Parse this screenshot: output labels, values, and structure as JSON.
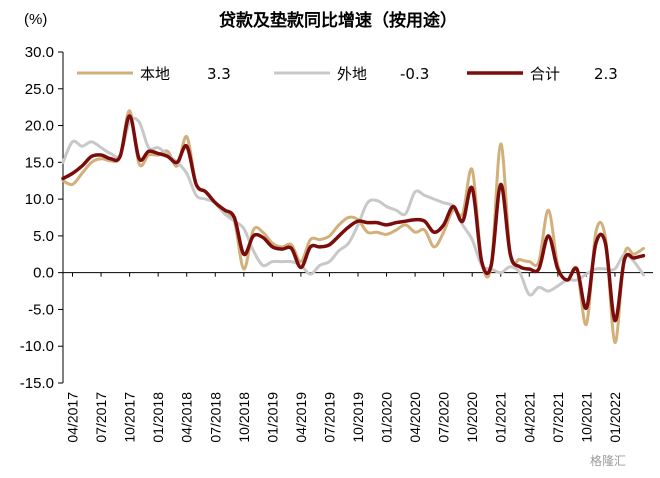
{
  "chart_data": {
    "type": "line",
    "title": "贷款及垫款同比增速（按用途）",
    "unit_label": "(%)",
    "ylim": [
      -15,
      30
    ],
    "y_ticks": [
      "30.0",
      "25.0",
      "20.0",
      "15.0",
      "10.0",
      "5.0",
      "0.0",
      "-5.0",
      "-10.0",
      "-15.0"
    ],
    "x_ticks": [
      "04/2017",
      "07/2017",
      "10/2017",
      "01/2018",
      "04/2018",
      "07/2018",
      "10/2018",
      "01/2019",
      "04/2019",
      "07/2019",
      "10/2019",
      "01/2020",
      "04/2020",
      "07/2020",
      "10/2020",
      "01/2021",
      "04/2021",
      "07/2021",
      "10/2021",
      "01/2022"
    ],
    "x_start": "2017-03",
    "x_end": "2022-05",
    "legend_position": "top",
    "grid": false,
    "series": [
      {
        "name": "本地",
        "legend_value": "3.3",
        "color": "#d2b07c",
        "width": 3,
        "values": [
          [
            "2017-03",
            12.5
          ],
          [
            "2017-04",
            12.0
          ],
          [
            "2017-05",
            13.5
          ],
          [
            "2017-06",
            15.0
          ],
          [
            "2017-07",
            15.5
          ],
          [
            "2017-08",
            15.2
          ],
          [
            "2017-09",
            15.8
          ],
          [
            "2017-10",
            22.0
          ],
          [
            "2017-11",
            14.8
          ],
          [
            "2017-12",
            16.0
          ],
          [
            "2018-01",
            16.0
          ],
          [
            "2018-02",
            16.5
          ],
          [
            "2018-03",
            14.5
          ],
          [
            "2018-04",
            18.5
          ],
          [
            "2018-05",
            12.0
          ],
          [
            "2018-06",
            11.0
          ],
          [
            "2018-07",
            9.5
          ],
          [
            "2018-08",
            8.0
          ],
          [
            "2018-09",
            7.0
          ],
          [
            "2018-10",
            0.5
          ],
          [
            "2018-11",
            5.8
          ],
          [
            "2018-12",
            5.5
          ],
          [
            "2019-01",
            4.0
          ],
          [
            "2019-02",
            3.5
          ],
          [
            "2019-03",
            3.8
          ],
          [
            "2019-04",
            1.5
          ],
          [
            "2019-05",
            4.5
          ],
          [
            "2019-06",
            4.5
          ],
          [
            "2019-07",
            5.0
          ],
          [
            "2019-08",
            6.5
          ],
          [
            "2019-09",
            7.5
          ],
          [
            "2019-10",
            7.2
          ],
          [
            "2019-11",
            5.5
          ],
          [
            "2019-12",
            5.5
          ],
          [
            "2020-01",
            5.2
          ],
          [
            "2020-02",
            5.8
          ],
          [
            "2020-03",
            6.5
          ],
          [
            "2020-04",
            5.5
          ],
          [
            "2020-05",
            5.8
          ],
          [
            "2020-06",
            3.5
          ],
          [
            "2020-07",
            5.5
          ],
          [
            "2020-08",
            8.5
          ],
          [
            "2020-09",
            8.0
          ],
          [
            "2020-10",
            14.0
          ],
          [
            "2020-11",
            1.5
          ],
          [
            "2020-12",
            1.0
          ],
          [
            "2021-01",
            17.5
          ],
          [
            "2021-02",
            2.5
          ],
          [
            "2021-03",
            1.8
          ],
          [
            "2021-04",
            1.5
          ],
          [
            "2021-05",
            1.5
          ],
          [
            "2021-06",
            8.5
          ],
          [
            "2021-07",
            1.0
          ],
          [
            "2021-08",
            -1.0
          ],
          [
            "2021-09",
            0.5
          ],
          [
            "2021-10",
            -7.0
          ],
          [
            "2021-11",
            5.5
          ],
          [
            "2021-12",
            4.8
          ],
          [
            "2022-01",
            -9.5
          ],
          [
            "2022-02",
            2.5
          ],
          [
            "2022-03",
            2.5
          ],
          [
            "2022-04",
            3.3
          ]
        ]
      },
      {
        "name": "外地",
        "legend_value": "-0.3",
        "color": "#c8c8c8",
        "width": 3,
        "values": [
          [
            "2017-03",
            15.0
          ],
          [
            "2017-04",
            17.8
          ],
          [
            "2017-05",
            17.2
          ],
          [
            "2017-06",
            17.8
          ],
          [
            "2017-07",
            17.0
          ],
          [
            "2017-08",
            16.2
          ],
          [
            "2017-09",
            16.0
          ],
          [
            "2017-10",
            20.5
          ],
          [
            "2017-11",
            20.5
          ],
          [
            "2017-12",
            17.0
          ],
          [
            "2018-01",
            17.0
          ],
          [
            "2018-02",
            16.0
          ],
          [
            "2018-03",
            15.0
          ],
          [
            "2018-04",
            13.5
          ],
          [
            "2018-05",
            10.5
          ],
          [
            "2018-06",
            10.0
          ],
          [
            "2018-07",
            9.5
          ],
          [
            "2018-08",
            8.0
          ],
          [
            "2018-09",
            7.0
          ],
          [
            "2018-10",
            6.0
          ],
          [
            "2018-11",
            3.0
          ],
          [
            "2018-12",
            1.0
          ],
          [
            "2019-01",
            1.5
          ],
          [
            "2019-02",
            1.5
          ],
          [
            "2019-03",
            1.5
          ],
          [
            "2019-04",
            1.0
          ],
          [
            "2019-05",
            -0.2
          ],
          [
            "2019-06",
            1.0
          ],
          [
            "2019-07",
            1.5
          ],
          [
            "2019-08",
            3.0
          ],
          [
            "2019-09",
            4.0
          ],
          [
            "2019-10",
            6.5
          ],
          [
            "2019-11",
            9.5
          ],
          [
            "2019-12",
            9.8
          ],
          [
            "2020-01",
            9.0
          ],
          [
            "2020-02",
            8.5
          ],
          [
            "2020-03",
            8.0
          ],
          [
            "2020-04",
            11.0
          ],
          [
            "2020-05",
            10.5
          ],
          [
            "2020-06",
            10.0
          ],
          [
            "2020-07",
            9.5
          ],
          [
            "2020-08",
            9.0
          ],
          [
            "2020-09",
            6.5
          ],
          [
            "2020-10",
            4.5
          ],
          [
            "2020-11",
            1.0
          ],
          [
            "2020-12",
            0.5
          ],
          [
            "2021-01",
            0.0
          ],
          [
            "2021-02",
            0.8
          ],
          [
            "2021-03",
            0.0
          ],
          [
            "2021-04",
            -3.0
          ],
          [
            "2021-05",
            -2.0
          ],
          [
            "2021-06",
            -2.5
          ],
          [
            "2021-07",
            -1.8
          ],
          [
            "2021-08",
            -1.0
          ],
          [
            "2021-09",
            -1.0
          ],
          [
            "2021-10",
            -0.2
          ],
          [
            "2021-11",
            0.5
          ],
          [
            "2021-12",
            0.5
          ],
          [
            "2022-01",
            0.5
          ],
          [
            "2022-02",
            2.5
          ],
          [
            "2022-03",
            1.5
          ],
          [
            "2022-04",
            -0.3
          ]
        ]
      },
      {
        "name": "合计",
        "legend_value": "2.3",
        "color": "#7b0c0c",
        "width": 3.5,
        "values": [
          [
            "2017-03",
            12.8
          ],
          [
            "2017-04",
            13.5
          ],
          [
            "2017-05",
            14.5
          ],
          [
            "2017-06",
            15.8
          ],
          [
            "2017-07",
            16.0
          ],
          [
            "2017-08",
            15.5
          ],
          [
            "2017-09",
            15.8
          ],
          [
            "2017-10",
            21.3
          ],
          [
            "2017-11",
            15.5
          ],
          [
            "2017-12",
            16.5
          ],
          [
            "2018-01",
            16.2
          ],
          [
            "2018-02",
            15.8
          ],
          [
            "2018-03",
            15.0
          ],
          [
            "2018-04",
            17.2
          ],
          [
            "2018-05",
            12.0
          ],
          [
            "2018-06",
            11.0
          ],
          [
            "2018-07",
            9.5
          ],
          [
            "2018-08",
            8.5
          ],
          [
            "2018-09",
            7.5
          ],
          [
            "2018-10",
            2.5
          ],
          [
            "2018-11",
            5.0
          ],
          [
            "2018-12",
            4.8
          ],
          [
            "2019-01",
            3.5
          ],
          [
            "2019-02",
            3.2
          ],
          [
            "2019-03",
            3.3
          ],
          [
            "2019-04",
            0.7
          ],
          [
            "2019-05",
            3.5
          ],
          [
            "2019-06",
            3.5
          ],
          [
            "2019-07",
            3.8
          ],
          [
            "2019-08",
            5.0
          ],
          [
            "2019-09",
            6.2
          ],
          [
            "2019-10",
            7.0
          ],
          [
            "2019-11",
            6.8
          ],
          [
            "2019-12",
            6.8
          ],
          [
            "2020-01",
            6.5
          ],
          [
            "2020-02",
            6.8
          ],
          [
            "2020-03",
            7.0
          ],
          [
            "2020-04",
            7.2
          ],
          [
            "2020-05",
            7.0
          ],
          [
            "2020-06",
            5.5
          ],
          [
            "2020-07",
            6.5
          ],
          [
            "2020-08",
            9.0
          ],
          [
            "2020-09",
            7.0
          ],
          [
            "2020-10",
            11.5
          ],
          [
            "2020-11",
            1.5
          ],
          [
            "2020-12",
            1.0
          ],
          [
            "2021-01",
            12.0
          ],
          [
            "2021-02",
            2.5
          ],
          [
            "2021-03",
            0.8
          ],
          [
            "2021-04",
            0.5
          ],
          [
            "2021-05",
            0.5
          ],
          [
            "2021-06",
            5.0
          ],
          [
            "2021-07",
            0.5
          ],
          [
            "2021-08",
            -1.0
          ],
          [
            "2021-09",
            0.5
          ],
          [
            "2021-10",
            -4.8
          ],
          [
            "2021-11",
            4.0
          ],
          [
            "2021-12",
            4.0
          ],
          [
            "2022-01",
            -6.5
          ],
          [
            "2022-02",
            1.8
          ],
          [
            "2022-03",
            2.0
          ],
          [
            "2022-04",
            2.3
          ]
        ]
      }
    ]
  },
  "watermark": "格隆汇"
}
